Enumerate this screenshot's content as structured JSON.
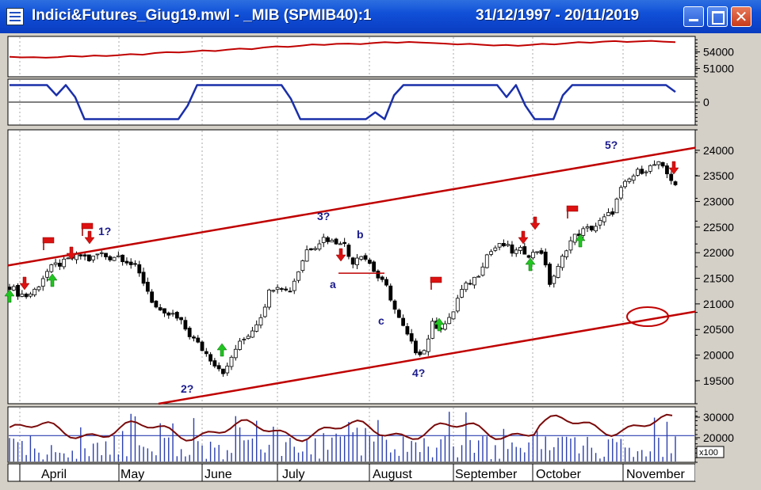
{
  "window": {
    "title": "Indici&Futures_Giug19.mwl - _MIB (SPMIB40):1",
    "date_range": "31/12/1997 - 20/11/2019",
    "buttons": [
      "minimize",
      "maximize",
      "close"
    ],
    "colors": {
      "titlebar": "#1050d8",
      "price_line": "#c00000",
      "oscillator": "#1a2faa",
      "volume": "#2b3fb0",
      "arrow_up": "#22c422",
      "arrow_down": "#dd1111"
    }
  },
  "chart_data": [
    {
      "type": "line",
      "panel": "top-line",
      "y_ticks": [
        54000,
        51000
      ],
      "ylim": [
        49500,
        56800
      ],
      "series": [
        {
          "values": [
            53100,
            53000,
            53050,
            52950,
            53050,
            53250,
            53150,
            53350,
            53250,
            53400,
            53600,
            53500,
            53800,
            53950,
            53900,
            54050,
            54250,
            54150,
            54400,
            54600,
            54500,
            54800,
            55000,
            54900,
            55100,
            55350,
            55250,
            55450,
            55500,
            55400,
            55600,
            55750,
            55650,
            55800,
            55700,
            55600,
            55500,
            55350,
            55450,
            55300,
            55150,
            55250,
            55100,
            55250,
            55450,
            55350,
            55550,
            55750,
            55650,
            55850,
            55950,
            55800,
            55900,
            56000,
            55850,
            55750
          ]
        }
      ]
    },
    {
      "type": "line",
      "panel": "oscillator",
      "y_ticks": [
        0
      ],
      "ylim": [
        -1.35,
        1.35
      ],
      "series": [
        {
          "values": [
            1,
            1,
            1,
            1,
            1,
            0.4,
            1,
            0.3,
            -1,
            -1,
            -1,
            -1,
            -1,
            -1,
            -1,
            -1,
            -1,
            -1,
            -1,
            -0.2,
            1,
            1,
            1,
            1,
            1,
            1,
            1,
            1,
            1,
            1,
            0.2,
            -1,
            -1,
            -1,
            -1,
            -1,
            -1,
            -1,
            -1,
            -0.6,
            -1,
            0.4,
            1,
            1,
            1,
            1,
            1,
            1,
            1,
            1,
            1,
            1,
            1,
            0.3,
            1,
            -0.2,
            -1,
            -1,
            -1,
            0.4,
            1,
            1,
            1,
            1,
            1,
            1,
            1,
            1,
            1,
            1,
            1,
            0.6
          ]
        }
      ]
    },
    {
      "type": "candlestick",
      "panel": "price",
      "y_ticks": [
        24000,
        23500,
        23000,
        22500,
        22000,
        21500,
        21000,
        20500,
        20000,
        19500
      ],
      "ylim": [
        19050,
        24400
      ],
      "close_path": [
        21350,
        21200,
        21150,
        21300,
        21600,
        21750,
        21800,
        21900,
        21950,
        21850,
        22000,
        21900,
        21950,
        21850,
        21700,
        21400,
        21000,
        20750,
        20800,
        20650,
        20400,
        20200,
        20000,
        19800,
        19650,
        20100,
        20300,
        20500,
        20800,
        21300,
        21400,
        21200,
        21600,
        22050,
        22150,
        22300,
        22200,
        22250,
        21800,
        22000,
        21800,
        21500,
        21300,
        20800,
        20450,
        20100,
        20050,
        20600,
        20550,
        20700,
        21200,
        21400,
        21550,
        21950,
        22100,
        22150,
        22000,
        22050,
        21950,
        22100,
        21400,
        21700,
        22150,
        22350,
        22450,
        22500,
        22650,
        22800,
        23250,
        23450,
        23600,
        23650,
        23750,
        23550,
        23350
      ],
      "channel_upper": {
        "from": {
          "date": "start",
          "value": 21750
        },
        "to": {
          "date": "end",
          "value": 24050
        }
      },
      "channel_lower": {
        "from": {
          "date": "May",
          "value": 19050
        },
        "to": {
          "date": "end",
          "value": 20850
        }
      },
      "wave_labels": [
        "1?",
        "2?",
        "3?",
        "4?",
        "5?",
        "a",
        "b",
        "c"
      ],
      "ellipse_note": "lower channel line circled near 20750 in November"
    },
    {
      "type": "bar+line",
      "panel": "volume",
      "y_ticks": [
        30000,
        20000
      ],
      "ylim": [
        8000,
        35000
      ],
      "multiplier": "x100",
      "reference_line": 21000,
      "series": [
        {
          "name": "volume"
        },
        {
          "name": "average"
        }
      ]
    }
  ],
  "x_axis": {
    "months": [
      "April",
      "May",
      "June",
      "July",
      "August",
      "September",
      "October",
      "November"
    ]
  }
}
